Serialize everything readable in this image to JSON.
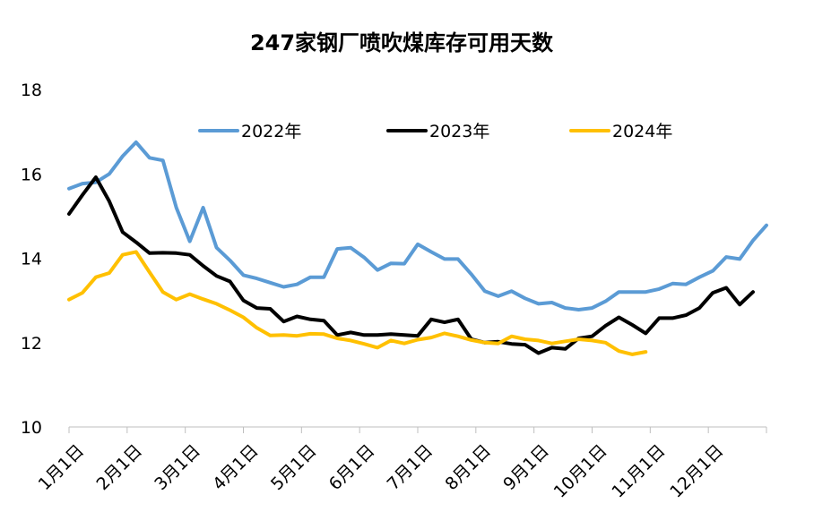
{
  "chart_data": {
    "type": "line",
    "title": "247家钢厂喷吹煤库存可用天数",
    "xlabel": "",
    "ylabel": "",
    "ylim": [
      10,
      18
    ],
    "yticks": [
      "10",
      "12",
      "14",
      "16",
      "18"
    ],
    "x_tick_labels": [
      "1月1日",
      "2月1日",
      "3月1日",
      "4月1日",
      "5月1日",
      "6月1日",
      "7月1日",
      "8月1日",
      "9月1日",
      "10月1日",
      "11月1日",
      "12月1日"
    ],
    "points_per_year": 52,
    "grid": false,
    "legend_position": "top",
    "series": [
      {
        "name": "2022年",
        "color": "#5B9BD5",
        "values": [
          15.65,
          15.77,
          15.8,
          16.0,
          16.42,
          16.75,
          16.38,
          16.32,
          15.2,
          14.4,
          15.2,
          14.25,
          13.95,
          13.6,
          13.52,
          13.42,
          13.32,
          13.38,
          13.55,
          13.55,
          14.22,
          14.25,
          14.02,
          13.72,
          13.88,
          13.87,
          14.33,
          14.15,
          13.98,
          13.98,
          13.62,
          13.22,
          13.1,
          13.22,
          13.05,
          12.92,
          12.95,
          12.82,
          12.78,
          12.82,
          12.98,
          13.2,
          13.2,
          13.2,
          13.27,
          13.4,
          13.38,
          13.55,
          13.7,
          14.03,
          13.98,
          14.42,
          14.78
        ]
      },
      {
        "name": "2023年",
        "color": "#000000",
        "values": [
          15.05,
          15.5,
          15.92,
          15.35,
          14.62,
          14.38,
          14.12,
          14.13,
          14.12,
          14.08,
          13.82,
          13.58,
          13.45,
          13.0,
          12.82,
          12.8,
          12.5,
          12.62,
          12.55,
          12.52,
          12.18,
          12.24,
          12.18,
          12.18,
          12.2,
          12.18,
          12.16,
          12.55,
          12.48,
          12.55,
          12.08,
          12.0,
          12.02,
          11.97,
          11.95,
          11.75,
          11.88,
          11.85,
          12.1,
          12.15,
          12.4,
          12.6,
          12.42,
          12.22,
          12.58,
          12.58,
          12.65,
          12.82,
          13.18,
          13.3,
          12.9,
          13.2
        ]
      },
      {
        "name": "2024年",
        "color": "#FFC000",
        "values": [
          13.02,
          13.18,
          13.55,
          13.65,
          14.08,
          14.15,
          13.67,
          13.2,
          13.02,
          13.15,
          13.03,
          12.92,
          12.77,
          12.6,
          12.35,
          12.17,
          12.18,
          12.16,
          12.21,
          12.2,
          12.1,
          12.05,
          11.97,
          11.88,
          12.05,
          11.98,
          12.07,
          12.12,
          12.22,
          12.15,
          12.06,
          12.0,
          11.98,
          12.15,
          12.08,
          12.05,
          11.98,
          12.03,
          12.08,
          12.05,
          12.0,
          11.8,
          11.72,
          11.78
        ]
      }
    ]
  }
}
